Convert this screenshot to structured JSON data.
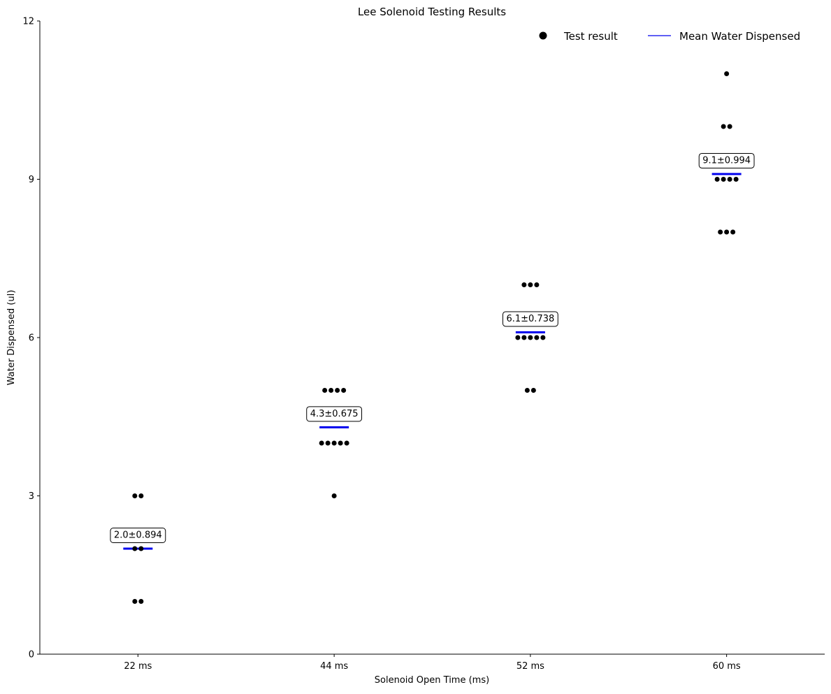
{
  "chart_data": {
    "type": "scatter",
    "title": "Lee Solenoid Testing Results",
    "xlabel": "Solenoid Open Time (ms)",
    "ylabel": "Water Dispensed (ul)",
    "categories": [
      "22 ms",
      "44 ms",
      "52 ms",
      "60 ms"
    ],
    "ylim": [
      0,
      12
    ],
    "yticks": [
      0,
      3,
      6,
      9,
      12
    ],
    "grid": false,
    "legend_position": "top-right",
    "series": [
      {
        "name": "Test result",
        "marker": "circle",
        "color": "#000000",
        "points": [
          [
            1,
            1,
            2,
            2,
            3,
            3
          ],
          [
            3,
            4,
            4,
            4,
            4,
            4,
            5,
            5,
            5,
            5
          ],
          [
            5,
            5,
            6,
            6,
            6,
            6,
            6,
            7,
            7,
            7
          ],
          [
            8,
            8,
            8,
            9,
            9,
            9,
            9,
            10,
            10,
            11
          ]
        ]
      },
      {
        "name": "Mean Water Dispensed",
        "marker": "line",
        "color": "#0000ee",
        "values": [
          2.0,
          4.3,
          6.1,
          9.1
        ]
      }
    ],
    "annotations": [
      "2.0±0.894",
      "4.3±0.675",
      "6.1±0.738",
      "9.1±0.994"
    ]
  }
}
